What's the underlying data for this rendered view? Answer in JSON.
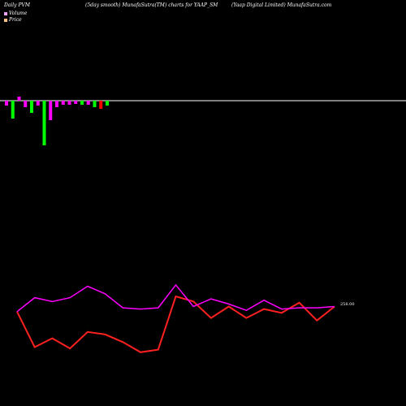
{
  "header": {
    "left": "Daily PVM",
    "center": "(5day smooth) MunafaSutra(TM) charts for YAAP_SM",
    "right": "(Yaap Digital Limited) MunafaSutra.com"
  },
  "legend": {
    "volume_label": "Volume",
    "price_label": "Price",
    "volume_color": "#f0a0ff",
    "price_color": "#ffc080"
  },
  "price_label_text": "258.00",
  "colors": {
    "background": "#000000",
    "up": "#00ff00",
    "down": "#ff0000",
    "neutral": "#ff00ff",
    "price_line": "#ff2020",
    "volume_line": "#ff00ff",
    "axis": "#ffffff"
  },
  "chart_data": [
    {
      "type": "bar",
      "title": "Volume",
      "colors": [
        "neutral",
        "up",
        "neutral",
        "neutral",
        "up",
        "neutral",
        "up",
        "neutral",
        "neutral",
        "neutral",
        "neutral",
        "neutral",
        "up",
        "neutral",
        "up",
        "down",
        "up"
      ],
      "values": [
        -6,
        -22,
        5,
        -8,
        -15,
        -6,
        -55,
        -24,
        -8,
        -5,
        -5,
        -4,
        -5,
        -5,
        -8,
        -10,
        -6
      ]
    },
    {
      "type": "line",
      "x": [
        1,
        2,
        3,
        4,
        5,
        6,
        7,
        8,
        9,
        10,
        11,
        12,
        13,
        14,
        15,
        16,
        17,
        18,
        19
      ],
      "series": [
        {
          "values": [
            256.0,
            242.0,
            245.5,
            241.5,
            248.0,
            247.0,
            244.0,
            240.0,
            241.0,
            262.0,
            260.0,
            253.5,
            258.0,
            253.5,
            257.0,
            255.5,
            259.5,
            252.5,
            258.0
          ]
        },
        {
          "values": [
            256.0,
            261.5,
            260.0,
            261.5,
            266.0,
            263.0,
            257.5,
            257.0,
            257.5,
            266.5,
            258.0,
            261.0,
            259.0,
            256.5,
            260.5,
            257.0,
            257.5,
            257.5,
            258.0
          ]
        }
      ]
    }
  ]
}
